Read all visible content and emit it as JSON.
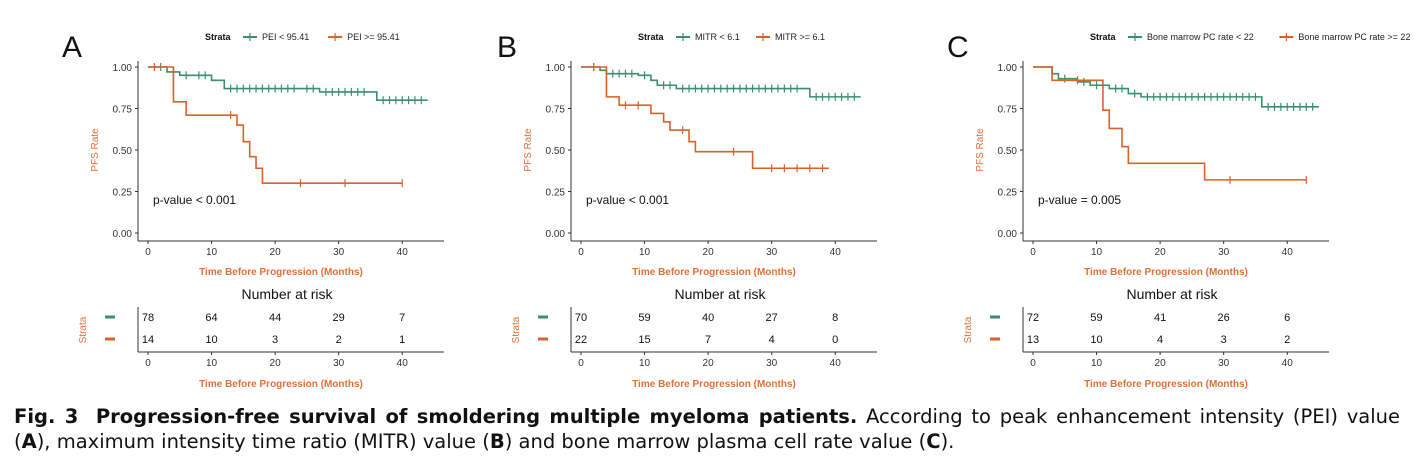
{
  "caption": {
    "fig_label": "Fig. 3",
    "title": "Progression-free survival of smoldering multiple myeloma patients.",
    "text_1": "According to peak enhancement intensity (PEI) value (",
    "text_2": "), maximum intensity time ratio (MITR) value (",
    "text_3": ") and bone marrow plasma cell rate value (",
    "text_4": ")."
  },
  "colors": {
    "low_group": "#3a8f6e",
    "high_group": "#d9622b",
    "axis_text": "#e0703a"
  },
  "chart_data": [
    {
      "type": "line",
      "panel_label": "A",
      "legend_title": "Strata",
      "legend_position": "top",
      "xlabel": "Time Before Progression (Months)",
      "ylabel": "PFS Rate",
      "xlim": [
        0,
        45
      ],
      "ylim": [
        0,
        1
      ],
      "x_ticks": [
        0,
        10,
        20,
        30,
        40
      ],
      "y_ticks": [
        "0.00",
        "0.25",
        "0.50",
        "0.75",
        "1.00"
      ],
      "annotation": "p-value < 0.001",
      "series": [
        {
          "name": "PEI < 95.41",
          "color": "#3a8f6e",
          "steps": [
            [
              0,
              1.0
            ],
            [
              3,
              0.97
            ],
            [
              5,
              0.95
            ],
            [
              10,
              0.92
            ],
            [
              12,
              0.87
            ],
            [
              27,
              0.85
            ],
            [
              36,
              0.8
            ],
            [
              44,
              0.8
            ]
          ],
          "censors": [
            2,
            6,
            8,
            9,
            13,
            14,
            15,
            16,
            17,
            18,
            19,
            20,
            21,
            22,
            23,
            25,
            26,
            28,
            29,
            30,
            31,
            32,
            33,
            34,
            37,
            38,
            39,
            40,
            41,
            42,
            43
          ]
        },
        {
          "name": "PEI >= 95.41",
          "color": "#d9622b",
          "steps": [
            [
              0,
              1.0
            ],
            [
              4,
              0.79
            ],
            [
              6,
              0.71
            ],
            [
              14,
              0.65
            ],
            [
              15,
              0.55
            ],
            [
              16,
              0.46
            ],
            [
              17,
              0.39
            ],
            [
              18,
              0.3
            ],
            [
              40,
              0.3
            ]
          ],
          "censors": [
            1,
            13,
            24,
            31,
            40
          ]
        }
      ],
      "risk_table": {
        "title": "Number at risk",
        "strata_label": "Strata",
        "xlabel": "Time Before Progression (Months)",
        "times": [
          0,
          10,
          20,
          30,
          40
        ],
        "rows": [
          [
            "78",
            "64",
            "44",
            "29",
            "7"
          ],
          [
            "14",
            "10",
            "3",
            "2",
            "1"
          ]
        ]
      }
    },
    {
      "type": "line",
      "panel_label": "B",
      "legend_title": "Strata",
      "legend_position": "top",
      "xlabel": "Time Before Progression (Months)",
      "ylabel": "PFS Rate",
      "xlim": [
        0,
        45
      ],
      "ylim": [
        0,
        1
      ],
      "x_ticks": [
        0,
        10,
        20,
        30,
        40
      ],
      "y_ticks": [
        "0.00",
        "0.25",
        "0.50",
        "0.75",
        "1.00"
      ],
      "annotation": "p-value < 0.001",
      "series": [
        {
          "name": "MITR < 6.1",
          "color": "#3a8f6e",
          "steps": [
            [
              0,
              1.0
            ],
            [
              3,
              0.98
            ],
            [
              4,
              0.96
            ],
            [
              9,
              0.95
            ],
            [
              11,
              0.92
            ],
            [
              12,
              0.89
            ],
            [
              15,
              0.87
            ],
            [
              36,
              0.82
            ],
            [
              44,
              0.82
            ]
          ],
          "censors": [
            2,
            5,
            6,
            7,
            8,
            10,
            13,
            14,
            16,
            17,
            18,
            19,
            20,
            21,
            22,
            23,
            24,
            25,
            26,
            27,
            28,
            29,
            30,
            31,
            32,
            33,
            34,
            37,
            38,
            39,
            40,
            41,
            42,
            43
          ]
        },
        {
          "name": "MITR >= 6.1",
          "color": "#d9622b",
          "steps": [
            [
              0,
              1.0
            ],
            [
              4,
              0.82
            ],
            [
              6,
              0.77
            ],
            [
              11,
              0.72
            ],
            [
              13,
              0.67
            ],
            [
              14,
              0.62
            ],
            [
              17,
              0.55
            ],
            [
              18,
              0.49
            ],
            [
              27,
              0.39
            ],
            [
              39,
              0.39
            ]
          ],
          "censors": [
            2,
            7,
            9,
            16,
            24,
            30,
            32,
            34,
            36,
            38
          ]
        }
      ],
      "risk_table": {
        "title": "Number at risk",
        "strata_label": "Strata",
        "xlabel": "Time Before Progression (Months)",
        "times": [
          0,
          10,
          20,
          30,
          40
        ],
        "rows": [
          [
            "70",
            "59",
            "40",
            "27",
            "8"
          ],
          [
            "22",
            "15",
            "7",
            "4",
            "0"
          ]
        ]
      }
    },
    {
      "type": "line",
      "panel_label": "C",
      "legend_title": "Strata",
      "legend_position": "top",
      "xlabel": "Time Before Progression (Months)",
      "ylabel": "PFS Rate",
      "xlim": [
        0,
        45
      ],
      "ylim": [
        0,
        1
      ],
      "x_ticks": [
        0,
        10,
        20,
        30,
        40
      ],
      "y_ticks": [
        "0.00",
        "0.25",
        "0.50",
        "0.75",
        "1.00"
      ],
      "annotation": "p-value = 0.005",
      "series": [
        {
          "name": "Bone marrow PC rate < 22",
          "color": "#3a8f6e",
          "steps": [
            [
              0,
              1.0
            ],
            [
              3,
              0.96
            ],
            [
              4,
              0.93
            ],
            [
              7,
              0.91
            ],
            [
              9,
              0.89
            ],
            [
              12,
              0.87
            ],
            [
              15,
              0.84
            ],
            [
              17,
              0.82
            ],
            [
              36,
              0.76
            ],
            [
              45,
              0.76
            ]
          ],
          "censors": [
            5,
            8,
            10,
            11,
            13,
            14,
            16,
            18,
            19,
            20,
            21,
            22,
            23,
            24,
            25,
            26,
            27,
            28,
            29,
            30,
            31,
            32,
            33,
            34,
            35,
            37,
            38,
            39,
            40,
            41,
            42,
            43,
            44
          ]
        },
        {
          "name": "Bone marrow PC rate >= 22",
          "color": "#d9622b",
          "steps": [
            [
              0,
              1.0
            ],
            [
              3,
              0.92
            ],
            [
              8,
              0.92
            ],
            [
              11,
              0.74
            ],
            [
              12,
              0.63
            ],
            [
              14,
              0.52
            ],
            [
              15,
              0.42
            ],
            [
              27,
              0.32
            ],
            [
              43,
              0.32
            ]
          ],
          "censors": [
            7,
            31,
            43
          ]
        }
      ],
      "risk_table": {
        "title": "Number at risk",
        "strata_label": "Strata",
        "xlabel": "Time Before Progression (Months)",
        "times": [
          0,
          10,
          20,
          30,
          40
        ],
        "rows": [
          [
            "72",
            "59",
            "41",
            "26",
            "6"
          ],
          [
            "13",
            "10",
            "4",
            "3",
            "2"
          ]
        ]
      }
    }
  ]
}
